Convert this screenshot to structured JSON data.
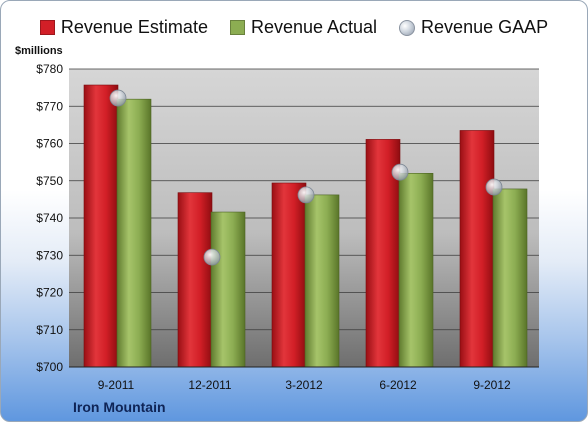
{
  "colors": {
    "estimate": "#d21f27",
    "actual": "#8cad52",
    "gaap": "#c9d0d8",
    "plot_bg_top": "#d2d2d2",
    "plot_bg_bottom": "#707070"
  },
  "company": "Iron Mountain",
  "chart_data": {
    "type": "bar",
    "title": "",
    "ylabel": "$millions",
    "xlabel": "",
    "ylim": [
      700,
      780
    ],
    "yticks": [
      700,
      710,
      720,
      730,
      740,
      750,
      760,
      770,
      780
    ],
    "ytick_labels": [
      "$700",
      "$710",
      "$720",
      "$730",
      "$740",
      "$750",
      "$760",
      "$770",
      "$780"
    ],
    "categories": [
      "9-2011",
      "12-2011",
      "3-2012",
      "6-2012",
      "9-2012"
    ],
    "legend": "top",
    "grid": true,
    "series": [
      {
        "name": "Revenue Estimate",
        "type": "bar",
        "values": [
          775.7,
          746.8,
          749.4,
          761.1,
          763.5
        ]
      },
      {
        "name": "Revenue Actual",
        "type": "bar",
        "values": [
          771.9,
          741.6,
          746.2,
          752.0,
          747.8
        ]
      },
      {
        "name": "Revenue GAAP",
        "type": "marker",
        "values": [
          772.2,
          729.5,
          746.2,
          752.3,
          748.3
        ]
      }
    ]
  }
}
